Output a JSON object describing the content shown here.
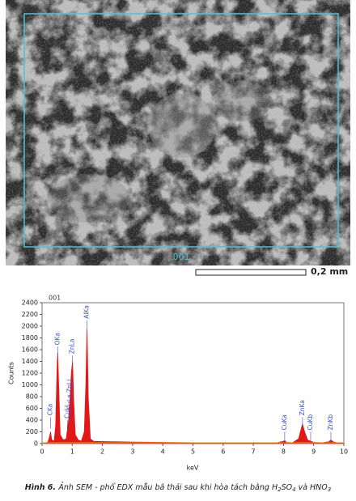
{
  "sem": {
    "region_label": "001",
    "scale_label": "0,2 mm"
  },
  "chart_data": {
    "type": "area",
    "title": "001",
    "x_label": "keV",
    "y_label": "Counts",
    "color": "#e01818",
    "x": [
      0.1,
      0.2,
      0.25,
      0.28,
      0.32,
      0.4,
      0.45,
      0.5,
      0.52,
      0.55,
      0.6,
      0.7,
      0.8,
      0.88,
      0.93,
      0.97,
      1.01,
      1.05,
      1.1,
      1.2,
      1.3,
      1.4,
      1.45,
      1.49,
      1.53,
      1.6,
      1.7,
      2,
      2.5,
      3,
      4,
      5,
      6,
      7,
      7.8,
      8.0,
      8.04,
      8.1,
      8.3,
      8.5,
      8.6,
      8.63,
      8.7,
      8.8,
      8.9,
      9.0,
      9.3,
      9.5,
      9.57,
      9.65,
      9.8,
      10
    ],
    "values": [
      0,
      30,
      120,
      200,
      60,
      40,
      300,
      1350,
      1550,
      1000,
      150,
      60,
      80,
      400,
      800,
      1200,
      1400,
      700,
      150,
      60,
      40,
      200,
      1000,
      1950,
      800,
      80,
      40,
      35,
      30,
      25,
      20,
      15,
      12,
      10,
      15,
      40,
      50,
      20,
      15,
      80,
      280,
      330,
      200,
      60,
      40,
      20,
      15,
      30,
      60,
      30,
      10,
      5
    ],
    "xlim": [
      0,
      10
    ],
    "xticks": [
      0,
      1,
      2,
      3,
      4,
      5,
      6,
      7,
      8,
      9,
      10
    ],
    "ylim": [
      0,
      2400
    ],
    "yticks": [
      0,
      200,
      400,
      600,
      800,
      1000,
      1200,
      1400,
      1600,
      1800,
      2000,
      2200,
      2400
    ],
    "peaks": [
      {
        "label": "CKa",
        "x": 0.28,
        "y": 450
      },
      {
        "label": "OKa",
        "x": 0.52,
        "y": 1650
      },
      {
        "label": "CuLl",
        "x": 0.84,
        "y": 400
      },
      {
        "label": "CuLa ZnLl",
        "x": 0.93,
        "y": 550
      },
      {
        "label": "ZnLa",
        "x": 1.01,
        "y": 1500
      },
      {
        "label": "AlKa",
        "x": 1.49,
        "y": 2100
      },
      {
        "label": "CuKa",
        "x": 8.04,
        "y": 200
      },
      {
        "label": "ZnKa",
        "x": 8.63,
        "y": 450
      },
      {
        "label": "CuKb",
        "x": 8.9,
        "y": 200
      },
      {
        "label": "ZnKb",
        "x": 9.57,
        "y": 200
      }
    ]
  },
  "caption": {
    "label": "Hình 6.",
    "parts": [
      "Ảnh SEM - phổ EDX mẫu bã thải sau khi hòa tách bằng H",
      "2",
      "SO",
      "4",
      " và HNO",
      "3"
    ]
  }
}
